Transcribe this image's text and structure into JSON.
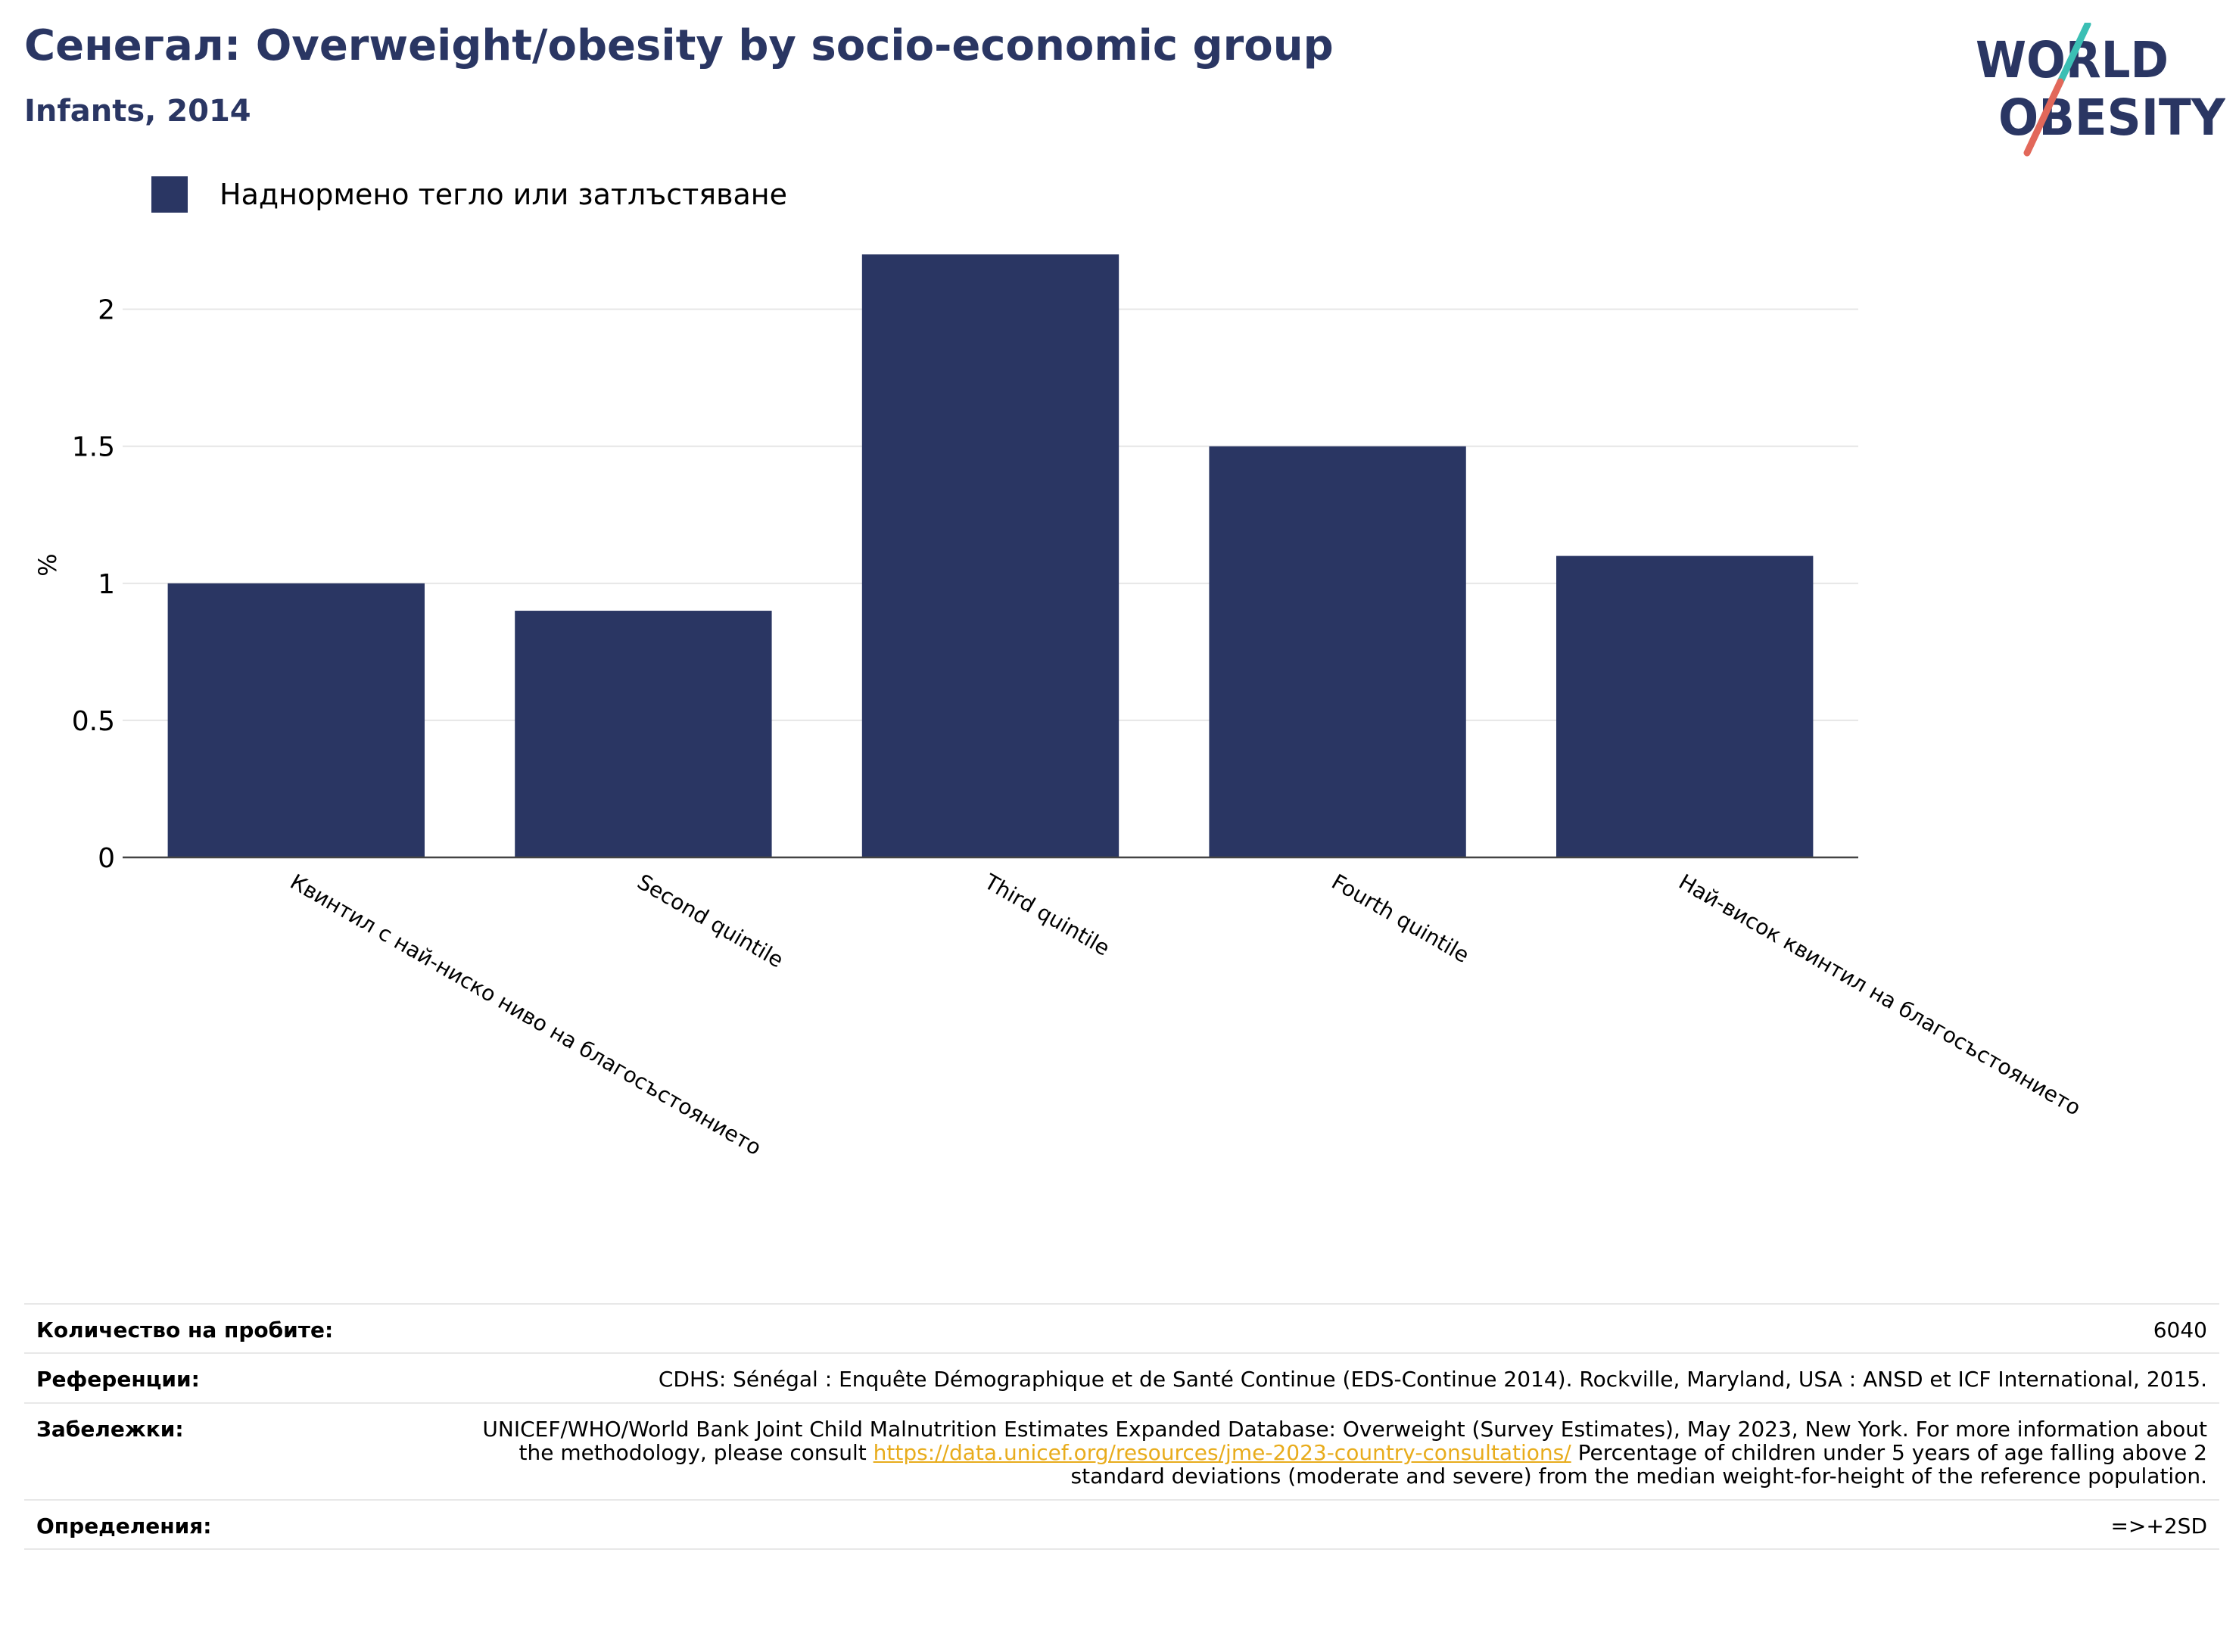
{
  "header": {
    "title": "Сенегал: Overweight/obesity by socio-economic group",
    "subtitle": "Infants, 2014"
  },
  "logo": {
    "line1": "WORLD",
    "line2": "OBESITY",
    "colors": {
      "text": "#2a3663",
      "slash_top": "#3bbfb4",
      "slash_bottom": "#e2685a"
    }
  },
  "legend": {
    "label": "Наднормено тегло или затлъстяване",
    "color": "#2a3663"
  },
  "chart_data": {
    "type": "bar",
    "categories": [
      "Квинтил с най-ниско ниво на благосъстоянието",
      "Second quintile",
      "Third quintile",
      "Fourth quintile",
      "Най-висок квинтил на благосъстоянието"
    ],
    "series": [
      {
        "name": "Наднормено тегло или затлъстяване",
        "values": [
          1.0,
          0.9,
          2.2,
          1.5,
          1.1
        ],
        "color": "#2a3663"
      }
    ],
    "ylabel": "%",
    "ylim": [
      0,
      2.3
    ],
    "yticks": [
      0,
      0.5,
      1,
      1.5,
      2
    ],
    "ytick_labels": [
      "0",
      "0.5",
      "1",
      "1.5",
      "2"
    ],
    "grid": true,
    "legend_position": "top-left"
  },
  "meta": {
    "sample_label": "Количество на пробите:",
    "sample_value": "6040",
    "references_label": "Референции:",
    "references_value": "CDHS: Sénégal : Enquête Démographique et de Santé Continue (EDS-Continue 2014). Rockville, Maryland, USA : ANSD et ICF International, 2015.",
    "notes_label": "Забележки:",
    "notes_before": "UNICEF/WHO/World Bank Joint Child Malnutrition Estimates Expanded Database: Overweight (Survey Estimates), May 2023, New York. For more information about the methodology, please consult",
    "notes_link": "https://data.unicef.org/resources/jme-2023-country-consultations/",
    "notes_after": "Percentage of children under 5 years of age falling above 2 standard deviations (moderate and severe) from the median weight-for-height of the reference population.",
    "definitions_label": "Определения:",
    "definitions_value": "=>+2SD"
  }
}
